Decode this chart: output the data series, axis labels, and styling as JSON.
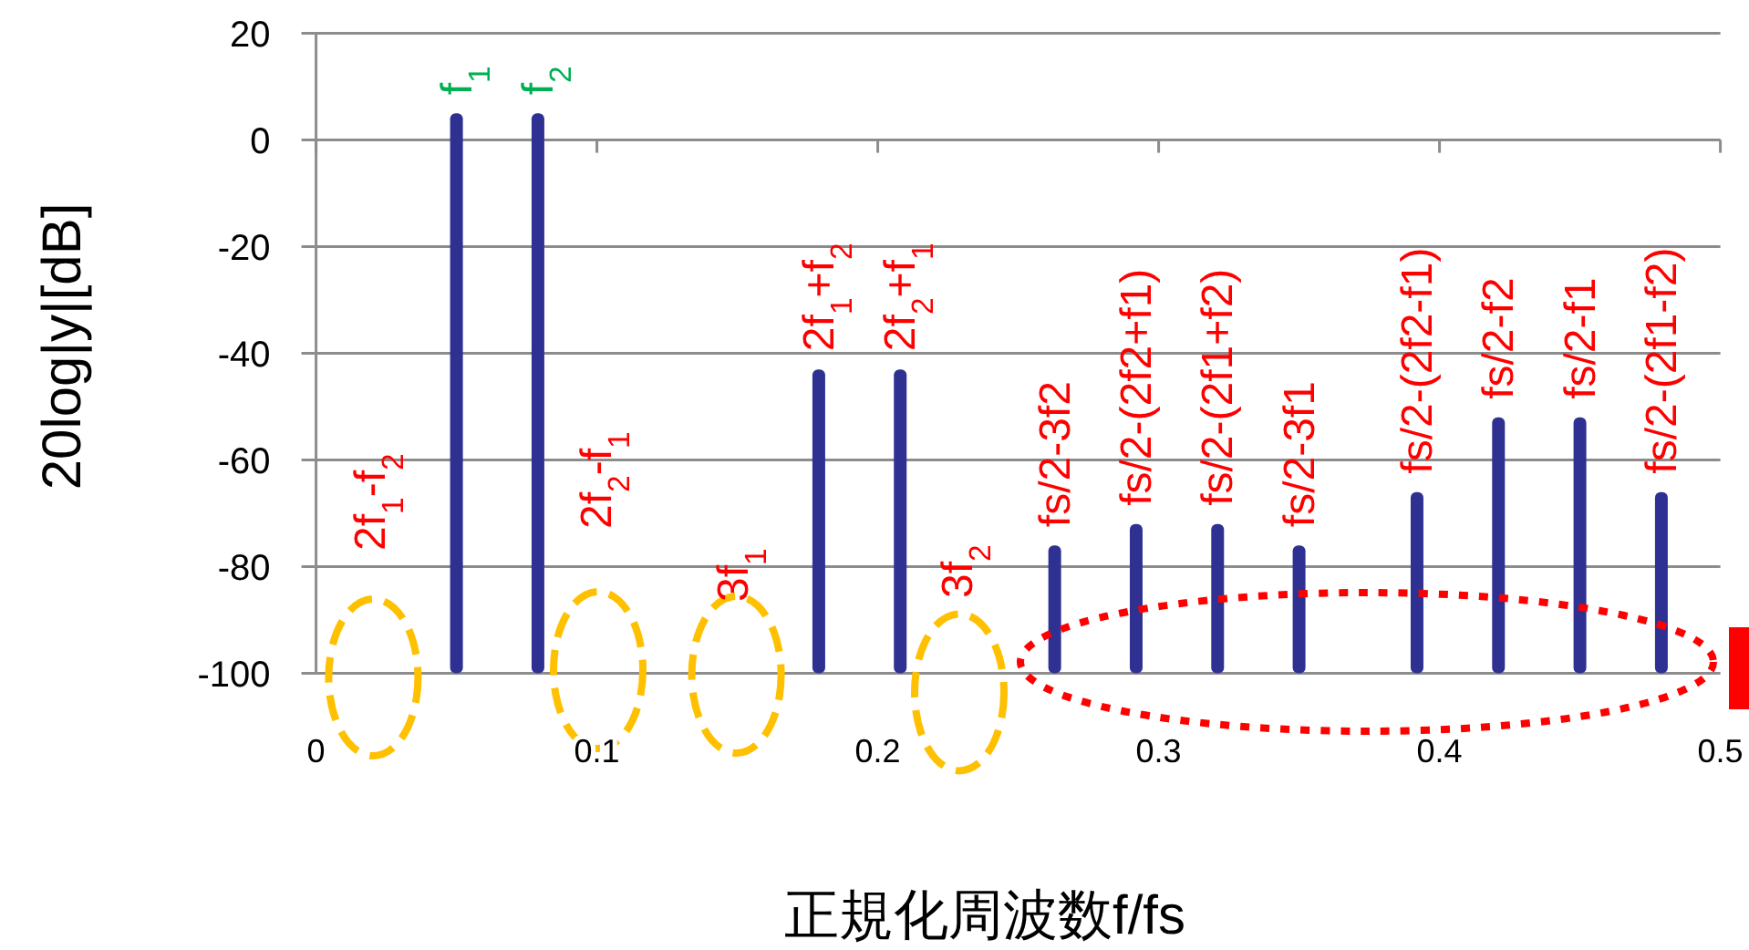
{
  "chart_data": {
    "type": "bar",
    "color": "#2e3192",
    "x": [
      0.05,
      0.079,
      0.179,
      0.208,
      0.263,
      0.292,
      0.321,
      0.35,
      0.392,
      0.421,
      0.45,
      0.479
    ],
    "base": [
      -100,
      -100,
      -100,
      -100,
      -100,
      -100,
      -100,
      -100,
      -100,
      -100,
      -100,
      -100
    ],
    "values": [
      105,
      105,
      57,
      57,
      24,
      28,
      28,
      24,
      34,
      48,
      48,
      34
    ],
    "xlim": [
      0,
      0.5
    ],
    "ylim": [
      -100,
      20
    ],
    "xticks": [
      0,
      0.1,
      0.2,
      0.3,
      0.4,
      0.5
    ],
    "yticks": [
      -100,
      -80,
      -60,
      -40,
      -20,
      0,
      20
    ],
    "grid": "y",
    "xlabel": "正規化周波数f/fs",
    "ylabel": "20log|y|[dB]",
    "annotations": [
      {
        "text": "f$_{1}$",
        "x": 0.05,
        "y": 5
      },
      {
        "text": "f$_{2}$",
        "x": 0.079,
        "y": 5
      },
      "2f$_{1}$-f$_{2}$",
      "2f$_{2}$-f$_{1}$",
      "3f$_{1}$",
      {
        "text": "2f$_{1}$+f$_{2}$",
        "x": 0.179,
        "y": -43
      },
      {
        "text": "2f$_{2}$+f$_{1}$",
        "x": 0.208,
        "y": -43
      },
      "3f$_{2}$",
      {
        "text": "fs/2-3f2",
        "x": 0.263,
        "y": -76
      },
      {
        "text": "fs/2-(2f2+f1)",
        "x": 0.292,
        "y": -72
      },
      {
        "text": "fs/2-(2f1+f2)",
        "x": 0.321,
        "y": -72
      },
      {
        "text": "fs/2-3f1",
        "x": 0.35,
        "y": -76
      },
      {
        "text": "fs/2-(2f2-f1)",
        "x": 0.392,
        "y": -66
      },
      {
        "text": "fs/2-f2",
        "x": 0.421,
        "y": -52
      },
      {
        "text": "fs/2-f1",
        "x": 0.45,
        "y": -52
      },
      {
        "text": "fs/2-(2f1-f2)",
        "x": 0.479,
        "y": -66
      }
    ]
  }
}
